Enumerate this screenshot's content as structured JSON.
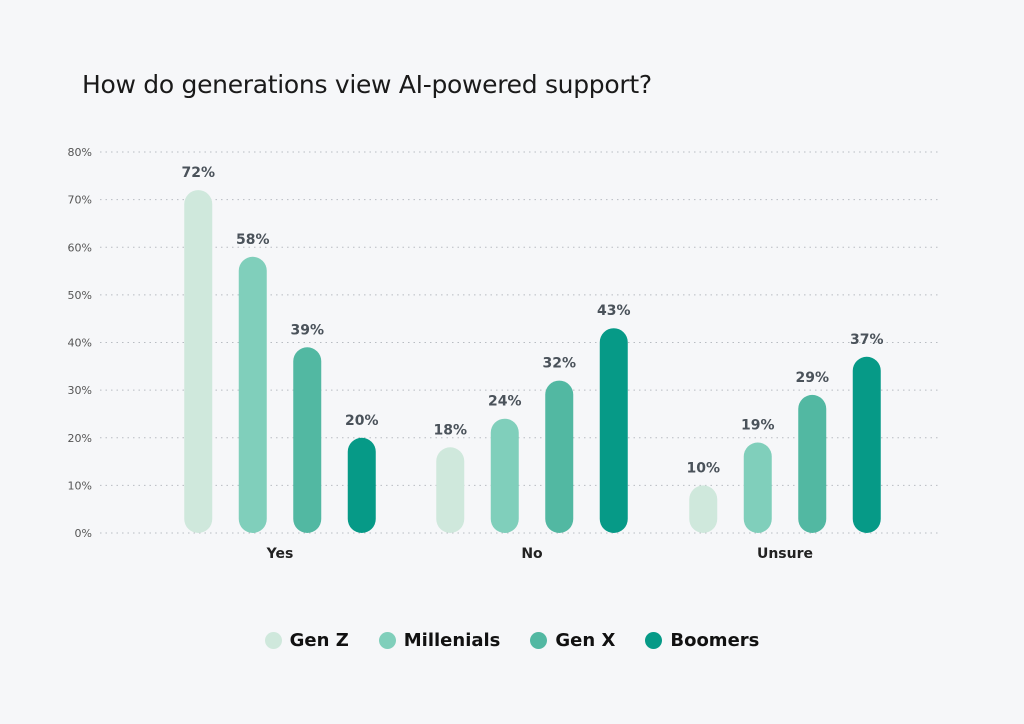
{
  "chart_data": {
    "type": "bar",
    "title": "How do generations view AI-powered support?",
    "categories": [
      "Yes",
      "No",
      "Unsure"
    ],
    "ylim": [
      0,
      80
    ],
    "yticks": [
      "0%",
      "10%",
      "20%",
      "30%",
      "40%",
      "50%",
      "60%",
      "70%",
      "80%"
    ],
    "grid": true,
    "legend_position": "bottom",
    "series": [
      {
        "name": "Gen Z",
        "color": "#cfe8dc",
        "values": [
          72,
          18,
          10
        ],
        "labels": [
          "72%",
          "18%",
          "10%"
        ]
      },
      {
        "name": "Millenials",
        "color": "#80cfbb",
        "values": [
          58,
          24,
          19
        ],
        "labels": [
          "58%",
          "24%",
          "19%"
        ]
      },
      {
        "name": "Gen X",
        "color": "#52b8a2",
        "values": [
          39,
          32,
          29
        ],
        "labels": [
          "39%",
          "32%",
          "29%"
        ]
      },
      {
        "name": "Boomers",
        "color": "#069a87",
        "values": [
          20,
          43,
          37
        ],
        "labels": [
          "20%",
          "43%",
          "37%"
        ]
      }
    ]
  }
}
